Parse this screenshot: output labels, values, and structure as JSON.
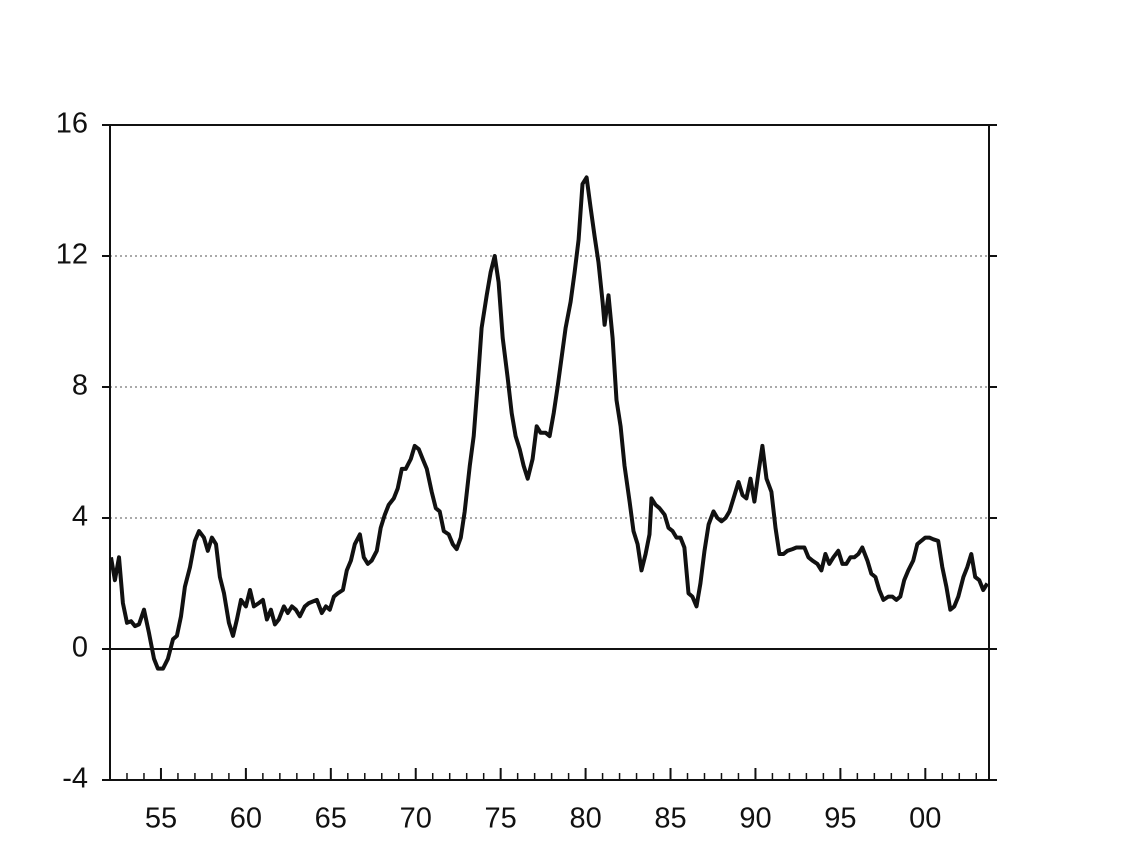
{
  "chart_data": {
    "type": "line",
    "x": [
      1952.06,
      1952.29,
      1952.53,
      1952.76,
      1953.0,
      1953.24,
      1953.47,
      1953.71,
      1954.0,
      1954.29,
      1954.59,
      1954.82,
      1955.12,
      1955.41,
      1955.71,
      1955.94,
      1956.18,
      1956.41,
      1956.71,
      1957.0,
      1957.24,
      1957.53,
      1957.76,
      1958.0,
      1958.24,
      1958.47,
      1958.71,
      1959.0,
      1959.24,
      1959.47,
      1959.71,
      1960.0,
      1960.24,
      1960.47,
      1960.76,
      1961.0,
      1961.24,
      1961.47,
      1961.71,
      1961.94,
      1962.24,
      1962.47,
      1962.71,
      1962.94,
      1963.18,
      1963.47,
      1963.71,
      1963.94,
      1964.18,
      1964.47,
      1964.71,
      1964.94,
      1965.18,
      1965.41,
      1965.71,
      1965.94,
      1966.18,
      1966.41,
      1966.71,
      1966.94,
      1967.18,
      1967.41,
      1967.71,
      1967.94,
      1968.18,
      1968.41,
      1968.71,
      1968.94,
      1969.18,
      1969.41,
      1969.71,
      1969.94,
      1970.18,
      1970.41,
      1970.65,
      1970.94,
      1971.18,
      1971.41,
      1971.65,
      1971.94,
      1972.18,
      1972.41,
      1972.65,
      1972.88,
      1973.18,
      1973.41,
      1973.65,
      1973.88,
      1974.18,
      1974.41,
      1974.65,
      1974.88,
      1975.12,
      1975.41,
      1975.65,
      1975.88,
      1976.12,
      1976.35,
      1976.59,
      1976.88,
      1977.12,
      1977.35,
      1977.65,
      1977.88,
      1978.12,
      1978.35,
      1978.59,
      1978.82,
      1979.12,
      1979.35,
      1979.59,
      1979.82,
      1980.06,
      1980.29,
      1980.53,
      1980.76,
      1981.0,
      1981.12,
      1981.35,
      1981.59,
      1981.82,
      1982.06,
      1982.29,
      1982.59,
      1982.82,
      1983.06,
      1983.29,
      1983.53,
      1983.76,
      1983.88,
      1984.12,
      1984.35,
      1984.65,
      1984.88,
      1985.12,
      1985.35,
      1985.59,
      1985.82,
      1986.06,
      1986.29,
      1986.53,
      1986.76,
      1987.0,
      1987.24,
      1987.53,
      1987.76,
      1988.0,
      1988.24,
      1988.47,
      1988.71,
      1989.0,
      1989.24,
      1989.47,
      1989.71,
      1989.94,
      1990.18,
      1990.41,
      1990.65,
      1990.94,
      1991.18,
      1991.41,
      1991.65,
      1991.88,
      1992.18,
      1992.41,
      1992.65,
      1992.88,
      1993.12,
      1993.35,
      1993.65,
      1993.88,
      1994.12,
      1994.35,
      1994.59,
      1994.88,
      1995.12,
      1995.35,
      1995.59,
      1995.82,
      1996.06,
      1996.29,
      1996.59,
      1996.82,
      1997.06,
      1997.29,
      1997.53,
      1997.82,
      1998.06,
      1998.29,
      1998.53,
      1998.76,
      1999.0,
      1999.29,
      1999.53,
      1999.76,
      2000.0,
      2000.24,
      2000.47,
      2000.76,
      2001.0,
      2001.24,
      2001.47,
      2001.71,
      2001.94,
      2002.24,
      2002.47,
      2002.71,
      2002.94,
      2003.18,
      2003.41,
      2003.65
    ],
    "values": [
      2.8,
      2.1,
      2.8,
      1.4,
      0.8,
      0.85,
      0.7,
      0.75,
      1.2,
      0.5,
      -0.3,
      -0.6,
      -0.6,
      -0.3,
      0.3,
      0.4,
      1.0,
      1.9,
      2.5,
      3.3,
      3.6,
      3.4,
      3.0,
      3.4,
      3.2,
      2.2,
      1.7,
      0.8,
      0.4,
      0.9,
      1.5,
      1.3,
      1.8,
      1.3,
      1.4,
      1.5,
      0.9,
      1.2,
      0.75,
      0.9,
      1.3,
      1.1,
      1.3,
      1.2,
      1.0,
      1.3,
      1.4,
      1.45,
      1.5,
      1.1,
      1.3,
      1.2,
      1.6,
      1.7,
      1.8,
      2.4,
      2.7,
      3.2,
      3.5,
      2.8,
      2.6,
      2.7,
      3.0,
      3.7,
      4.1,
      4.4,
      4.6,
      4.9,
      5.5,
      5.5,
      5.8,
      6.2,
      6.1,
      5.8,
      5.5,
      4.8,
      4.3,
      4.2,
      3.6,
      3.5,
      3.2,
      3.05,
      3.4,
      4.2,
      5.6,
      6.5,
      8.1,
      9.8,
      10.8,
      11.5,
      12.0,
      11.2,
      9.5,
      8.3,
      7.2,
      6.5,
      6.1,
      5.6,
      5.2,
      5.8,
      6.8,
      6.6,
      6.6,
      6.5,
      7.2,
      8.0,
      8.9,
      9.8,
      10.6,
      11.5,
      12.5,
      14.2,
      14.4,
      13.5,
      12.6,
      11.8,
      10.6,
      9.9,
      10.8,
      9.5,
      7.6,
      6.8,
      5.6,
      4.5,
      3.6,
      3.2,
      2.4,
      2.9,
      3.5,
      4.6,
      4.4,
      4.3,
      4.1,
      3.7,
      3.6,
      3.4,
      3.4,
      3.1,
      1.7,
      1.6,
      1.3,
      2.0,
      3.0,
      3.8,
      4.2,
      4.0,
      3.9,
      4.0,
      4.2,
      4.6,
      5.1,
      4.7,
      4.6,
      5.2,
      4.5,
      5.4,
      6.2,
      5.2,
      4.8,
      3.7,
      2.9,
      2.9,
      3.0,
      3.05,
      3.1,
      3.1,
      3.1,
      2.8,
      2.7,
      2.6,
      2.4,
      2.9,
      2.6,
      2.8,
      3.0,
      2.6,
      2.6,
      2.8,
      2.8,
      2.9,
      3.1,
      2.7,
      2.3,
      2.2,
      1.8,
      1.5,
      1.6,
      1.6,
      1.5,
      1.6,
      2.1,
      2.4,
      2.7,
      3.2,
      3.3,
      3.4,
      3.4,
      3.35,
      3.3,
      2.5,
      1.9,
      1.2,
      1.3,
      1.6,
      2.2,
      2.5,
      2.9,
      2.2,
      2.1,
      1.8,
      2.0
    ],
    "color": "#111111",
    "xlim": [
      1952,
      2003.75
    ],
    "xticks": [
      {
        "value": 1955,
        "label": "55"
      },
      {
        "value": 1960,
        "label": "60"
      },
      {
        "value": 1965,
        "label": "65"
      },
      {
        "value": 1970,
        "label": "70"
      },
      {
        "value": 1975,
        "label": "75"
      },
      {
        "value": 1980,
        "label": "80"
      },
      {
        "value": 1985,
        "label": "85"
      },
      {
        "value": 1990,
        "label": "90"
      },
      {
        "value": 1995,
        "label": "95"
      },
      {
        "value": 2000,
        "label": "00"
      }
    ],
    "xminorticks": [
      1952,
      1953,
      1954,
      1955,
      1956,
      1957,
      1958,
      1959,
      1960,
      1961,
      1962,
      1963,
      1964,
      1965,
      1966,
      1967,
      1968,
      1969,
      1970,
      1971,
      1972,
      1973,
      1974,
      1975,
      1976,
      1977,
      1978,
      1979,
      1980,
      1981,
      1982,
      1983,
      1984,
      1985,
      1986,
      1987,
      1988,
      1989,
      1990,
      1991,
      1992,
      1993,
      1994,
      1995,
      1996,
      1997,
      1998,
      1999,
      2000,
      2001,
      2002,
      2003
    ],
    "ylim": [
      -4,
      16
    ],
    "yticks": [
      -4,
      0,
      4,
      8,
      12,
      16
    ],
    "grid": true
  }
}
